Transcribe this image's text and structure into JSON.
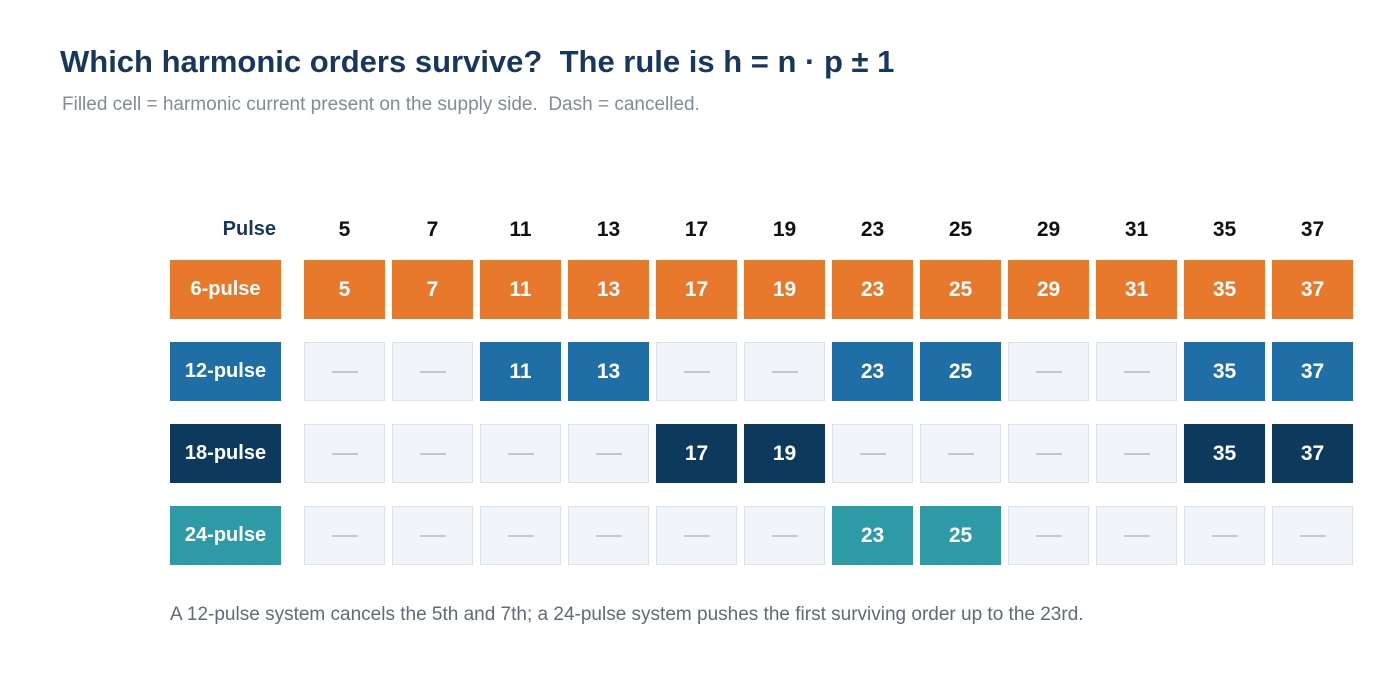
{
  "title": "Which harmonic orders survive?  The rule is h = n · p ± 1",
  "subtitle": "Filled cell = harmonic current present on the supply side.  Dash = cancelled.",
  "footnote": "A 12-pulse system cancels the 5th and 7th; a 24-pulse system pushes the first surviving order up to the 23rd.",
  "colors": {
    "six_pulse": "#e8792c",
    "twelve_pulse": "#1f6ea6",
    "eighteen_pulse": "#0d3a5c",
    "twenty_four_pulse": "#2e9aa6",
    "cancelled_fill": "#f1f4f8",
    "cancelled_border": "#d9e1ea",
    "dash": "#bfc8d3"
  },
  "chart_data": {
    "type": "table",
    "row_header": "Pulse",
    "columns": [
      "5",
      "7",
      "11",
      "13",
      "17",
      "19",
      "23",
      "25",
      "29",
      "31",
      "35",
      "37"
    ],
    "rows": [
      {
        "label": "6-pulse",
        "color": "#e8792c",
        "cells": [
          "5",
          "7",
          "11",
          "13",
          "17",
          "19",
          "23",
          "25",
          "29",
          "31",
          "35",
          "37"
        ]
      },
      {
        "label": "12-pulse",
        "color": "#1f6ea6",
        "cells": [
          "—",
          "—",
          "11",
          "13",
          "—",
          "—",
          "23",
          "25",
          "—",
          "—",
          "35",
          "37"
        ]
      },
      {
        "label": "18-pulse",
        "color": "#0d3a5c",
        "cells": [
          "—",
          "—",
          "—",
          "—",
          "17",
          "19",
          "—",
          "—",
          "—",
          "—",
          "35",
          "37"
        ]
      },
      {
        "label": "24-pulse",
        "color": "#2e9aa6",
        "cells": [
          "—",
          "—",
          "—",
          "—",
          "—",
          "—",
          "23",
          "25",
          "—",
          "—",
          "—",
          "—"
        ]
      }
    ]
  }
}
